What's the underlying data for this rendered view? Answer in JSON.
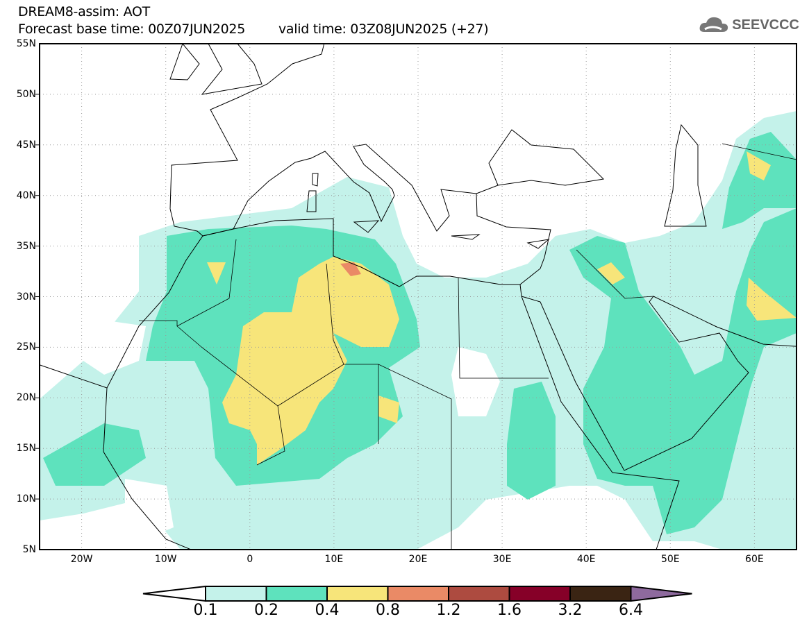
{
  "header": {
    "title": "DREAM8-assim: AOT",
    "base_time": "Forecast base time: 00Z07JUN2025",
    "valid_time": "valid time: 03Z08JUN2025 (+27)"
  },
  "logo": {
    "text": "SEEVCCC",
    "icon": "cloud-icon"
  },
  "axes": {
    "lat_labels": [
      "55N",
      "50N",
      "45N",
      "40N",
      "35N",
      "30N",
      "25N",
      "20N",
      "15N",
      "10N",
      "5N"
    ],
    "lon_labels": [
      "20W",
      "10W",
      "0",
      "10E",
      "20E",
      "30E",
      "40E",
      "50E",
      "60E"
    ]
  },
  "colorbar": {
    "labels": [
      "0.1",
      "0.2",
      "0.4",
      "0.8",
      "1.2",
      "1.6",
      "3.2",
      "6.4"
    ],
    "colors": [
      "#ffffff",
      "#c4f2ea",
      "#5ee2bd",
      "#f7e57a",
      "#ea8a66",
      "#ad4b40",
      "#860028",
      "#3a2413",
      "#8e6a9e"
    ]
  }
}
